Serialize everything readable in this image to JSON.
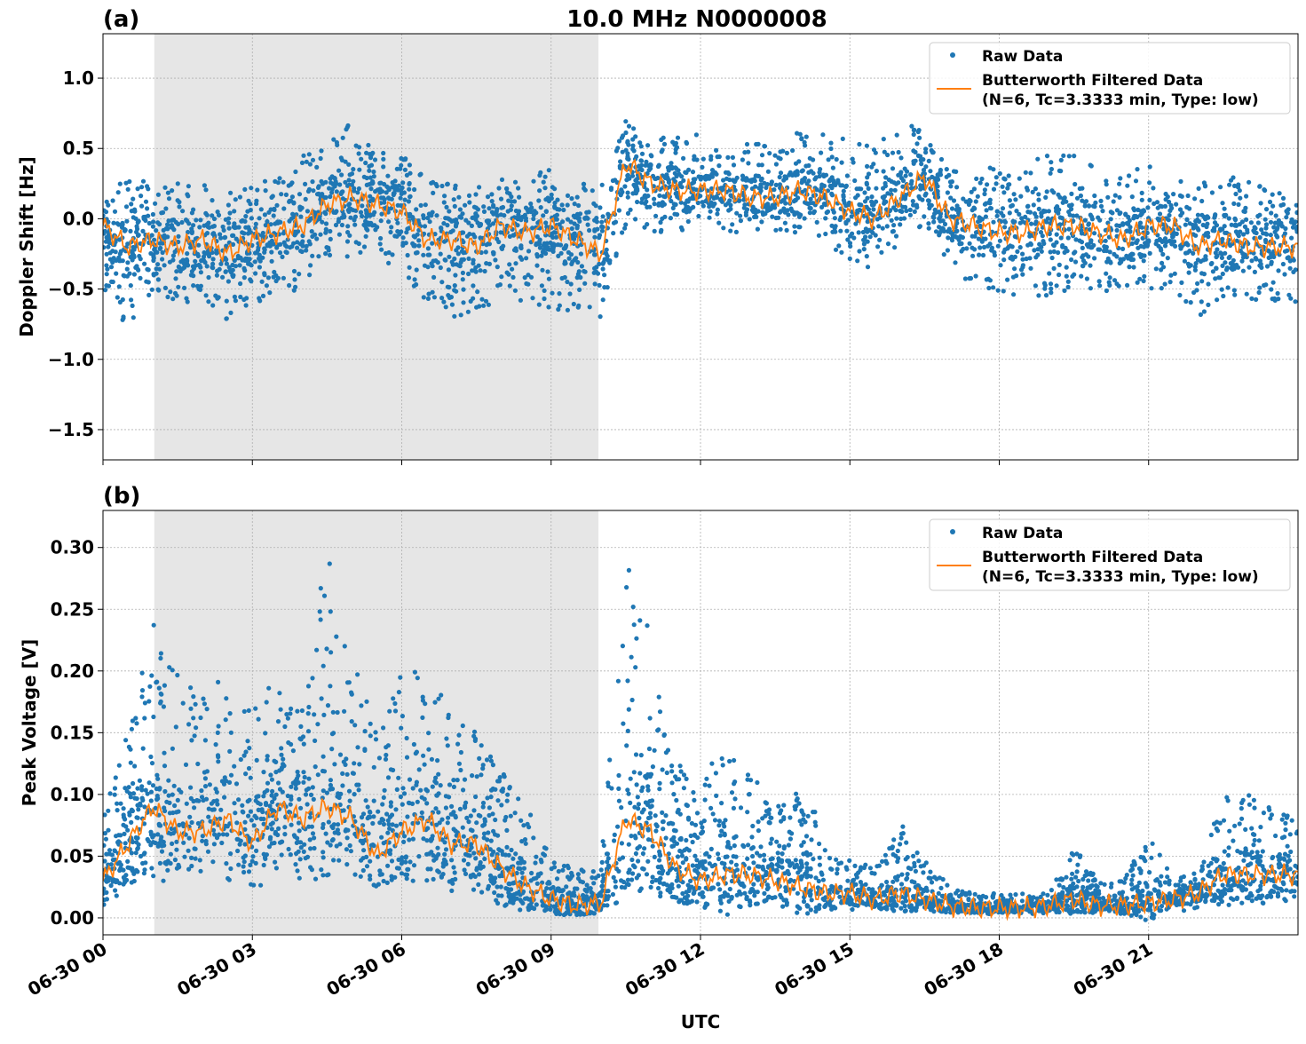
{
  "title": "10.0 MHz N0000008",
  "xlabel": "UTC",
  "x_tick_labels": [
    "06-30 00",
    "06-30 03",
    "06-30 06",
    "06-30 09",
    "06-30 12",
    "06-30 15",
    "06-30 18",
    "06-30 21"
  ],
  "legend": {
    "raw": "Raw Data",
    "filtered_line1": "Butterworth Filtered Data",
    "filtered_line2": "(N=6, Tc=3.3333 min, Type: low)"
  },
  "colors": {
    "raw": "#1f77b4",
    "filtered": "#ff7f0e",
    "shade": "#e6e6e6",
    "grid": "#b0b0b0"
  },
  "chart_data": [
    {
      "type": "scatter+line",
      "panel_label": "(a)",
      "ylabel": "Doppler Shift [Hz]",
      "xlim_hours_utc": [
        0,
        24
      ],
      "ylim": [
        -1.715,
        1.316
      ],
      "y_ticks": [
        -1.5,
        -1.0,
        -0.5,
        0.0,
        0.5,
        1.0
      ],
      "y_tick_labels": [
        "−1.5",
        "−1.0",
        "−0.5",
        "0.0",
        "0.5",
        "1.0"
      ],
      "grid": true,
      "legend_placement": "top-right",
      "shaded_interval_hours": [
        1.03,
        9.95
      ],
      "x_hours": [
        0,
        0.5,
        1,
        1.5,
        2,
        2.5,
        3,
        3.5,
        4,
        4.5,
        5,
        5.5,
        6,
        6.5,
        7,
        7.5,
        8,
        8.5,
        9,
        9.5,
        10,
        10.5,
        11,
        11.5,
        12,
        12.5,
        13,
        13.5,
        14,
        14.5,
        15,
        15.5,
        16,
        16.5,
        17,
        17.5,
        18,
        18.5,
        19,
        19.5,
        20,
        20.5,
        21,
        21.5,
        22,
        22.5,
        23,
        23.5,
        24
      ],
      "filtered": [
        -0.05,
        -0.2,
        -0.15,
        -0.2,
        -0.15,
        -0.25,
        -0.15,
        -0.1,
        -0.05,
        0.1,
        0.15,
        0.1,
        0.05,
        -0.15,
        -0.15,
        -0.2,
        -0.05,
        -0.1,
        -0.05,
        -0.15,
        -0.25,
        0.4,
        0.25,
        0.2,
        0.2,
        0.2,
        0.15,
        0.15,
        0.2,
        0.15,
        0.05,
        0.0,
        0.15,
        0.3,
        0.0,
        -0.05,
        -0.1,
        -0.1,
        -0.05,
        -0.05,
        -0.1,
        -0.15,
        -0.05,
        -0.05,
        -0.2,
        -0.15,
        -0.2,
        -0.2,
        -0.2
      ],
      "raw_lower": [
        -0.5,
        -0.8,
        -0.5,
        -0.6,
        -0.6,
        -0.75,
        -0.6,
        -0.55,
        -0.5,
        -0.3,
        -0.3,
        -0.3,
        -0.4,
        -0.6,
        -0.7,
        -0.7,
        -0.55,
        -0.6,
        -0.65,
        -0.65,
        -0.7,
        -0.05,
        -0.1,
        -0.1,
        -0.1,
        -0.1,
        -0.1,
        -0.1,
        -0.1,
        -0.15,
        -0.35,
        -0.4,
        -0.2,
        -0.1,
        -0.4,
        -0.5,
        -0.55,
        -0.55,
        -0.55,
        -0.5,
        -0.5,
        -0.55,
        -0.5,
        -0.5,
        -0.7,
        -0.55,
        -0.6,
        -0.6,
        -0.6
      ],
      "raw_upper": [
        0.25,
        0.3,
        0.25,
        0.25,
        0.25,
        0.2,
        0.25,
        0.3,
        0.45,
        0.55,
        0.7,
        0.5,
        0.45,
        0.3,
        0.25,
        0.25,
        0.3,
        0.3,
        0.35,
        0.3,
        0.25,
        0.7,
        0.6,
        0.6,
        0.6,
        0.5,
        0.55,
        0.5,
        0.65,
        0.6,
        0.6,
        0.5,
        0.7,
        0.65,
        0.35,
        0.3,
        0.4,
        0.35,
        0.5,
        0.45,
        0.35,
        0.3,
        0.4,
        0.3,
        0.25,
        0.3,
        0.3,
        0.2,
        0.2
      ]
    },
    {
      "type": "scatter+line",
      "panel_label": "(b)",
      "ylabel": "Peak Voltage [V]",
      "xlim_hours_utc": [
        0,
        24
      ],
      "ylim": [
        -0.0137,
        0.33
      ],
      "y_ticks": [
        0.0,
        0.05,
        0.1,
        0.15,
        0.2,
        0.25,
        0.3
      ],
      "y_tick_labels": [
        "0.00",
        "0.05",
        "0.10",
        "0.15",
        "0.20",
        "0.25",
        "0.30"
      ],
      "grid": true,
      "legend_placement": "top-right",
      "shaded_interval_hours": [
        1.03,
        9.95
      ],
      "x_hours": [
        0,
        0.5,
        1,
        1.5,
        2,
        2.5,
        3,
        3.5,
        4,
        4.5,
        5,
        5.5,
        6,
        6.5,
        7,
        7.5,
        8,
        8.5,
        9,
        9.5,
        10,
        10.5,
        11,
        11.5,
        12,
        12.5,
        13,
        13.5,
        14,
        14.5,
        15,
        15.5,
        16,
        16.5,
        17,
        17.5,
        18,
        18.5,
        19,
        19.5,
        20,
        20.5,
        21,
        21.5,
        22,
        22.5,
        23,
        23.5,
        24
      ],
      "filtered": [
        0.03,
        0.06,
        0.09,
        0.07,
        0.07,
        0.08,
        0.06,
        0.09,
        0.08,
        0.09,
        0.08,
        0.05,
        0.07,
        0.08,
        0.06,
        0.06,
        0.04,
        0.025,
        0.015,
        0.01,
        0.012,
        0.08,
        0.07,
        0.04,
        0.03,
        0.035,
        0.035,
        0.03,
        0.025,
        0.02,
        0.02,
        0.015,
        0.02,
        0.015,
        0.01,
        0.008,
        0.008,
        0.008,
        0.01,
        0.015,
        0.01,
        0.01,
        0.012,
        0.015,
        0.02,
        0.035,
        0.035,
        0.035,
        0.035
      ],
      "raw_lower": [
        0.01,
        0.02,
        0.03,
        0.03,
        0.03,
        0.03,
        0.02,
        0.03,
        0.03,
        0.03,
        0.03,
        0.02,
        0.03,
        0.03,
        0.02,
        0.02,
        0.01,
        0.005,
        0.004,
        0.004,
        0.005,
        0.02,
        0.02,
        0.01,
        0.01,
        0.01,
        0.01,
        0.01,
        0.008,
        0.007,
        0.006,
        0.005,
        0.006,
        0.005,
        0.003,
        0.003,
        0.003,
        0.003,
        0.003,
        0.004,
        0.003,
        0.003,
        0.004,
        0.005,
        0.007,
        0.01,
        0.01,
        0.01,
        0.01
      ],
      "raw_upper": [
        0.09,
        0.15,
        0.24,
        0.2,
        0.18,
        0.2,
        0.17,
        0.2,
        0.19,
        0.3,
        0.22,
        0.15,
        0.2,
        0.21,
        0.17,
        0.15,
        0.12,
        0.09,
        0.06,
        0.04,
        0.04,
        0.31,
        0.23,
        0.14,
        0.1,
        0.16,
        0.12,
        0.09,
        0.11,
        0.07,
        0.05,
        0.04,
        0.08,
        0.05,
        0.025,
        0.02,
        0.02,
        0.02,
        0.02,
        0.06,
        0.03,
        0.03,
        0.07,
        0.03,
        0.04,
        0.1,
        0.1,
        0.09,
        0.08
      ]
    }
  ]
}
